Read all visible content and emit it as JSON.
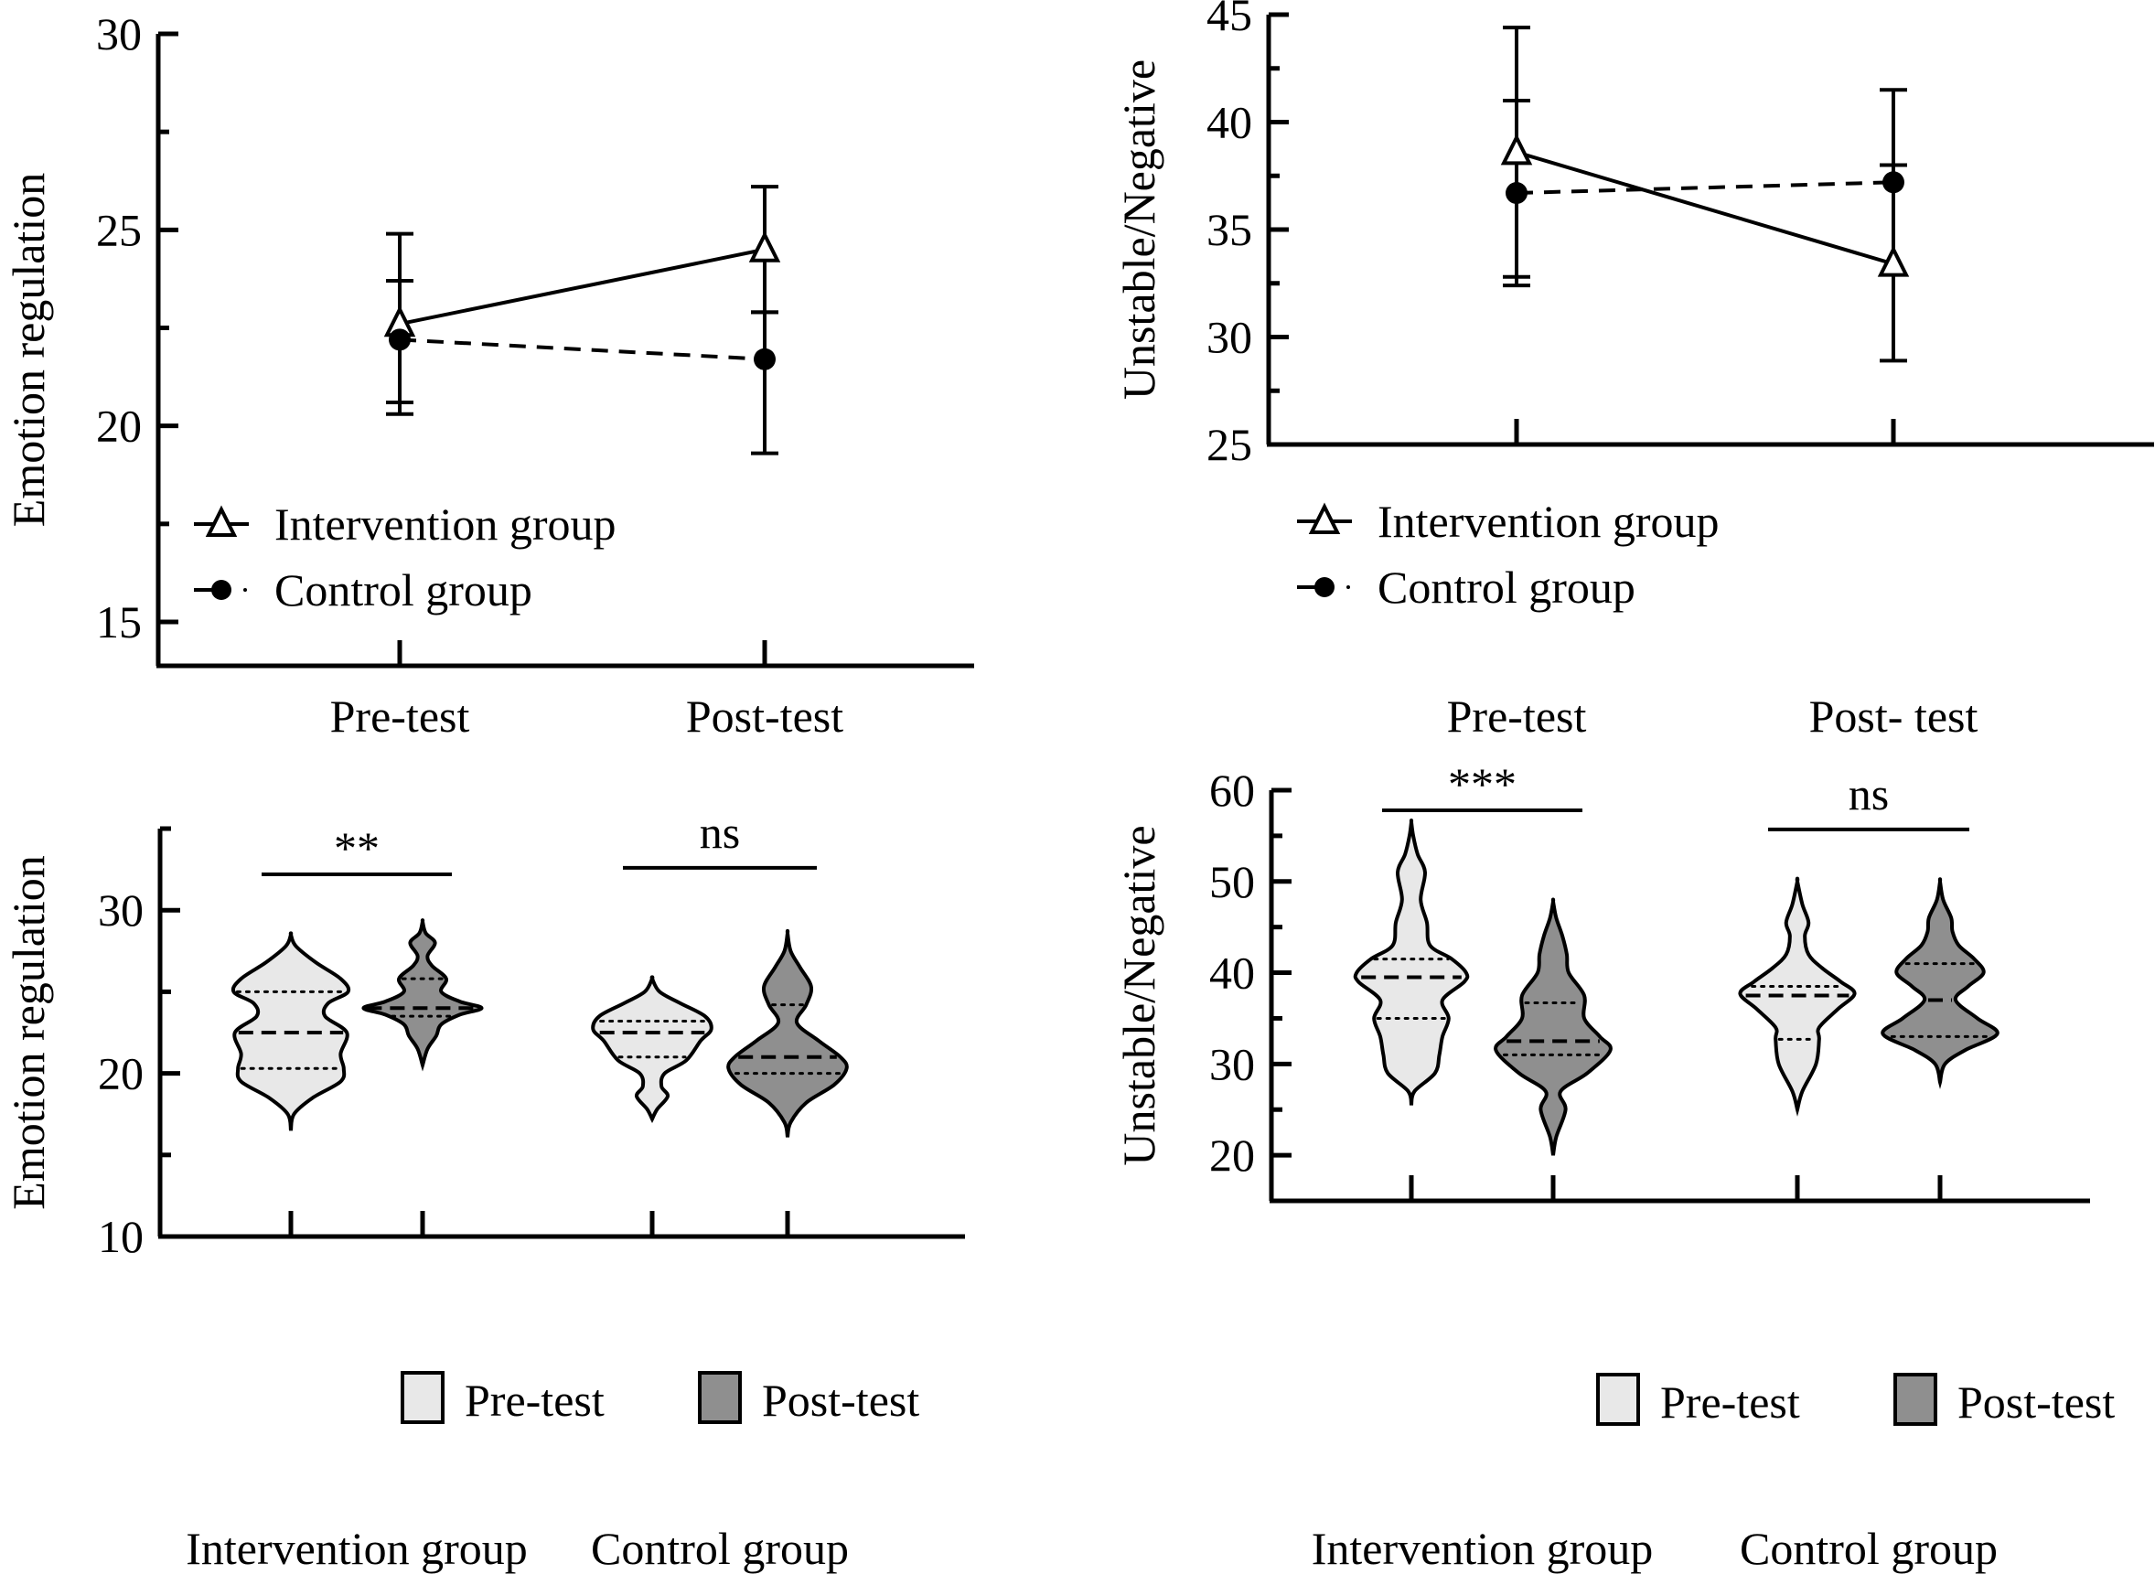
{
  "chart_data": [
    {
      "id": "panel-a",
      "type": "line",
      "title": "",
      "xlabel": "",
      "ylabel": "Emotion regulation",
      "ylim": [
        15,
        30
      ],
      "yticks": [
        15,
        20,
        25,
        30
      ],
      "yticks_minor": [
        17.5,
        22.5,
        27.5
      ],
      "categories": [
        "Pre-test",
        "Post-test"
      ],
      "grid": false,
      "legend_position": "bottom-left",
      "series": [
        {
          "name": "Intervention group",
          "marker": "open-triangle",
          "line": "solid",
          "values": [
            22.6,
            24.5
          ],
          "error_upper": [
            24.9,
            26.1
          ],
          "error_lower": [
            20.3,
            22.9
          ]
        },
        {
          "name": "Control group",
          "marker": "filled-circle",
          "line": "dashed",
          "values": [
            22.2,
            21.7
          ],
          "error_upper": [
            23.7,
            22.9
          ],
          "error_lower": [
            20.6,
            19.3
          ]
        }
      ]
    },
    {
      "id": "panel-b",
      "type": "line",
      "title": "",
      "xlabel": "",
      "ylabel": "Unstable/Negative",
      "ylim": [
        25,
        45
      ],
      "yticks": [
        25,
        30,
        35,
        40,
        45
      ],
      "yticks_minor": [
        27.5,
        32.5,
        37.5,
        42.5
      ],
      "categories": [
        "Pre-test",
        "Post- test"
      ],
      "grid": false,
      "legend_position": "bottom-left",
      "series": [
        {
          "name": "Intervention group",
          "marker": "open-triangle",
          "line": "solid",
          "values": [
            38.6,
            33.4
          ],
          "error_upper": [
            44.4,
            38.0
          ],
          "error_lower": [
            32.8,
            28.9
          ]
        },
        {
          "name": "Control group",
          "marker": "filled-circle",
          "line": "dashed",
          "values": [
            36.7,
            37.2
          ],
          "error_upper": [
            41.0,
            41.5
          ],
          "error_lower": [
            32.4,
            32.9
          ]
        }
      ]
    },
    {
      "id": "panel-c",
      "type": "violin",
      "title": "",
      "xlabel": "",
      "ylabel": "Emotion regulation",
      "ylim": [
        10,
        35
      ],
      "yticks": [
        10,
        20,
        30
      ],
      "yticks_minor": [
        15,
        25,
        35
      ],
      "categories": [
        "Intervention group",
        "Control group"
      ],
      "legend_position": "bottom-right",
      "legend": [
        {
          "name": "Pre-test",
          "color": "#e8e8e8"
        },
        {
          "name": "Post-test",
          "color": "#8f8f8f"
        }
      ],
      "significance": [
        {
          "group": "Intervention group",
          "label": "**",
          "y": 32.2
        },
        {
          "group": "Control group",
          "label": "ns",
          "y": 32.6
        }
      ],
      "violins": [
        {
          "group": "Intervention group",
          "phase": "Pre-test",
          "median": 22.5,
          "q1": 20.3,
          "q3": 25.0,
          "profile": [
            [
              16.5,
              0
            ],
            [
              17.5,
              0.05
            ],
            [
              18.5,
              0.35
            ],
            [
              19.5,
              0.8
            ],
            [
              20.3,
              0.85
            ],
            [
              21.2,
              0.8
            ],
            [
              22.5,
              0.9
            ],
            [
              23.5,
              0.55
            ],
            [
              24.3,
              0.6
            ],
            [
              25.0,
              0.92
            ],
            [
              25.8,
              0.8
            ],
            [
              26.8,
              0.4
            ],
            [
              27.8,
              0.08
            ],
            [
              28.5,
              0
            ]
          ]
        },
        {
          "group": "Intervention group",
          "phase": "Post-test",
          "median": 24.0,
          "q1": 23.5,
          "q3": 25.8,
          "profile": [
            [
              20.5,
              0
            ],
            [
              21.5,
              0.08
            ],
            [
              22.3,
              0.22
            ],
            [
              23.0,
              0.3
            ],
            [
              23.6,
              0.6
            ],
            [
              24.0,
              0.95
            ],
            [
              24.4,
              0.6
            ],
            [
              25.0,
              0.3
            ],
            [
              25.8,
              0.38
            ],
            [
              26.6,
              0.15
            ],
            [
              27.2,
              0.08
            ],
            [
              28.0,
              0.2
            ],
            [
              28.6,
              0.05
            ],
            [
              29.3,
              0
            ]
          ]
        },
        {
          "group": "Control group",
          "phase": "Pre-test",
          "median": 22.5,
          "q1": 21.0,
          "q3": 23.2,
          "profile": [
            [
              17.2,
              0
            ],
            [
              17.8,
              0.08
            ],
            [
              18.6,
              0.25
            ],
            [
              19.2,
              0.15
            ],
            [
              20.0,
              0.2
            ],
            [
              20.8,
              0.55
            ],
            [
              22.0,
              0.78
            ],
            [
              22.7,
              0.95
            ],
            [
              23.5,
              0.85
            ],
            [
              24.3,
              0.45
            ],
            [
              25.0,
              0.12
            ],
            [
              25.8,
              0
            ]
          ]
        },
        {
          "group": "Control group",
          "phase": "Post-test",
          "median": 21.0,
          "q1": 20.0,
          "q3": 24.2,
          "profile": [
            [
              16.1,
              0
            ],
            [
              17.0,
              0.05
            ],
            [
              18.2,
              0.3
            ],
            [
              19.3,
              0.75
            ],
            [
              20.3,
              0.95
            ],
            [
              21.0,
              0.85
            ],
            [
              22.0,
              0.5
            ],
            [
              23.1,
              0.15
            ],
            [
              24.2,
              0.3
            ],
            [
              25.3,
              0.38
            ],
            [
              26.5,
              0.2
            ],
            [
              27.5,
              0.05
            ],
            [
              28.6,
              0
            ]
          ]
        }
      ]
    },
    {
      "id": "panel-d",
      "type": "violin",
      "title": "",
      "xlabel": "",
      "ylabel": "Unstable/Negative",
      "ylim": [
        15,
        60
      ],
      "yticks": [
        20,
        30,
        40,
        50,
        60
      ],
      "yticks_minor": [
        25,
        35,
        45,
        55
      ],
      "categories": [
        "Intervention group",
        "Control group"
      ],
      "legend_position": "bottom-right",
      "legend": [
        {
          "name": "Pre-test",
          "color": "#e8e8e8"
        },
        {
          "name": "Post-test",
          "color": "#8f8f8f"
        }
      ],
      "significance": [
        {
          "group": "Intervention group",
          "label": "***",
          "y": 57.8
        },
        {
          "group": "Control group",
          "label": "ns",
          "y": 55.7
        }
      ],
      "violins": [
        {
          "group": "Intervention group",
          "phase": "Pre-test",
          "median": 39.5,
          "q1": 35.0,
          "q3": 41.5,
          "profile": [
            [
              25.5,
              0
            ],
            [
              27.0,
              0.05
            ],
            [
              29.0,
              0.38
            ],
            [
              31.0,
              0.45
            ],
            [
              33.0,
              0.5
            ],
            [
              35.0,
              0.6
            ],
            [
              37.0,
              0.5
            ],
            [
              39.0,
              0.85
            ],
            [
              40.0,
              0.88
            ],
            [
              41.5,
              0.65
            ],
            [
              43.0,
              0.3
            ],
            [
              45.5,
              0.25
            ],
            [
              48.0,
              0.15
            ],
            [
              51.0,
              0.22
            ],
            [
              53.0,
              0.1
            ],
            [
              55.0,
              0.03
            ],
            [
              56.5,
              0
            ]
          ]
        },
        {
          "group": "Intervention group",
          "phase": "Post-test",
          "median": 32.5,
          "q1": 31.0,
          "q3": 36.7,
          "profile": [
            [
              20.0,
              0
            ],
            [
              22.0,
              0.05
            ],
            [
              25.0,
              0.2
            ],
            [
              27.0,
              0.12
            ],
            [
              29.0,
              0.55
            ],
            [
              31.5,
              0.92
            ],
            [
              33.0,
              0.75
            ],
            [
              35.0,
              0.5
            ],
            [
              37.5,
              0.5
            ],
            [
              40.0,
              0.25
            ],
            [
              42.0,
              0.22
            ],
            [
              44.0,
              0.15
            ],
            [
              46.0,
              0.05
            ],
            [
              47.8,
              0
            ]
          ]
        },
        {
          "group": "Control group",
          "phase": "Pre-test",
          "median": 37.5,
          "q1": 32.7,
          "q3": 38.5,
          "profile": [
            [
              25.0,
              0
            ],
            [
              27.0,
              0.08
            ],
            [
              30.0,
              0.3
            ],
            [
              32.7,
              0.35
            ],
            [
              34.0,
              0.35
            ],
            [
              36.0,
              0.65
            ],
            [
              37.7,
              0.92
            ],
            [
              39.0,
              0.7
            ],
            [
              40.5,
              0.4
            ],
            [
              42.0,
              0.18
            ],
            [
              44.0,
              0.12
            ],
            [
              45.5,
              0.18
            ],
            [
              47.5,
              0.08
            ],
            [
              50.0,
              0
            ]
          ]
        },
        {
          "group": "Control group",
          "phase": "Post-test",
          "median": 37.0,
          "q1": 33.0,
          "q3": 41.0,
          "profile": [
            [
              28.0,
              0
            ],
            [
              30.0,
              0.08
            ],
            [
              31.5,
              0.4
            ],
            [
              33.3,
              0.92
            ],
            [
              35.0,
              0.6
            ],
            [
              37.0,
              0.25
            ],
            [
              38.5,
              0.45
            ],
            [
              40.0,
              0.7
            ],
            [
              41.5,
              0.55
            ],
            [
              43.0,
              0.3
            ],
            [
              44.5,
              0.2
            ],
            [
              46.0,
              0.18
            ],
            [
              48.0,
              0.05
            ],
            [
              50.0,
              0
            ]
          ]
        }
      ]
    }
  ]
}
